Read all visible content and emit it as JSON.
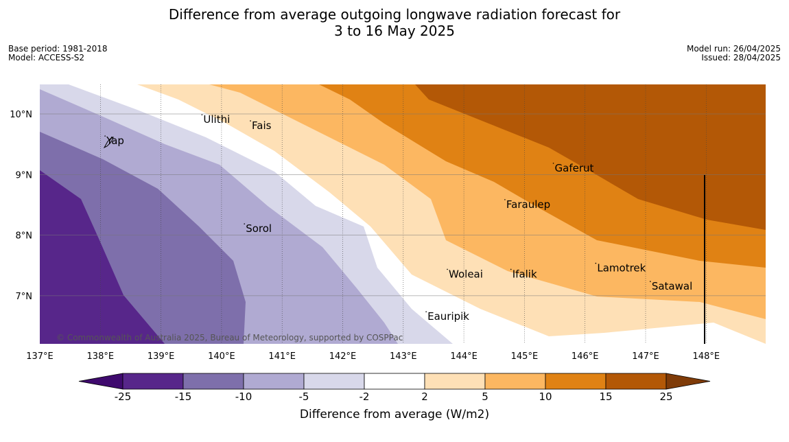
{
  "header": {
    "title_line1": "Difference from average outgoing longwave radiation forecast for",
    "title_line2": "3 to 16 May 2025",
    "base_period": "Base period: 1981-2018",
    "model": "Model: ACCESS-S2",
    "model_run": "Model run: 26/04/2025",
    "issued": "Issued: 28/04/2025"
  },
  "map": {
    "lon_labels": [
      "137°E",
      "138°E",
      "139°E",
      "140°E",
      "141°E",
      "142°E",
      "143°E",
      "144°E",
      "145°E",
      "146°E",
      "147°E",
      "148°E"
    ],
    "lat_labels": [
      "10°N",
      "9°N",
      "8°N",
      "7°N"
    ],
    "places": [
      {
        "name": "Ulithi",
        "lon": 139.7,
        "lat": 9.85
      },
      {
        "name": "Fais",
        "lon": 140.5,
        "lat": 9.75
      },
      {
        "name": "Yap",
        "lon": 138.1,
        "lat": 9.5
      },
      {
        "name": "Gaferut",
        "lon": 145.5,
        "lat": 9.05
      },
      {
        "name": "Faraulep",
        "lon": 144.7,
        "lat": 8.45
      },
      {
        "name": "Sorol",
        "lon": 140.4,
        "lat": 8.05
      },
      {
        "name": "Lamotrek",
        "lon": 146.2,
        "lat": 7.4
      },
      {
        "name": "Woleai",
        "lon": 143.75,
        "lat": 7.3
      },
      {
        "name": "Ifalik",
        "lon": 144.8,
        "lat": 7.3
      },
      {
        "name": "Satawal",
        "lon": 147.1,
        "lat": 7.1
      },
      {
        "name": "Eauripik",
        "lon": 143.4,
        "lat": 6.6
      }
    ],
    "copyright": "© Commonwealth of Australia 2025, Bureau of Meteorology, supported by COSPPac"
  },
  "colorbar": {
    "title": "Difference from average (W/m2)",
    "ticks": [
      "-25",
      "-15",
      "-10",
      "-5",
      "-2",
      "2",
      "5",
      "10",
      "15",
      "25"
    ],
    "colors": [
      "#3f0a6e",
      "#57268a",
      "#7e6fab",
      "#b0aad2",
      "#d8d8ea",
      "#ffffff",
      "#fee0b6",
      "#fcb761",
      "#e08214",
      "#b35806",
      "#7f3b08"
    ]
  }
}
